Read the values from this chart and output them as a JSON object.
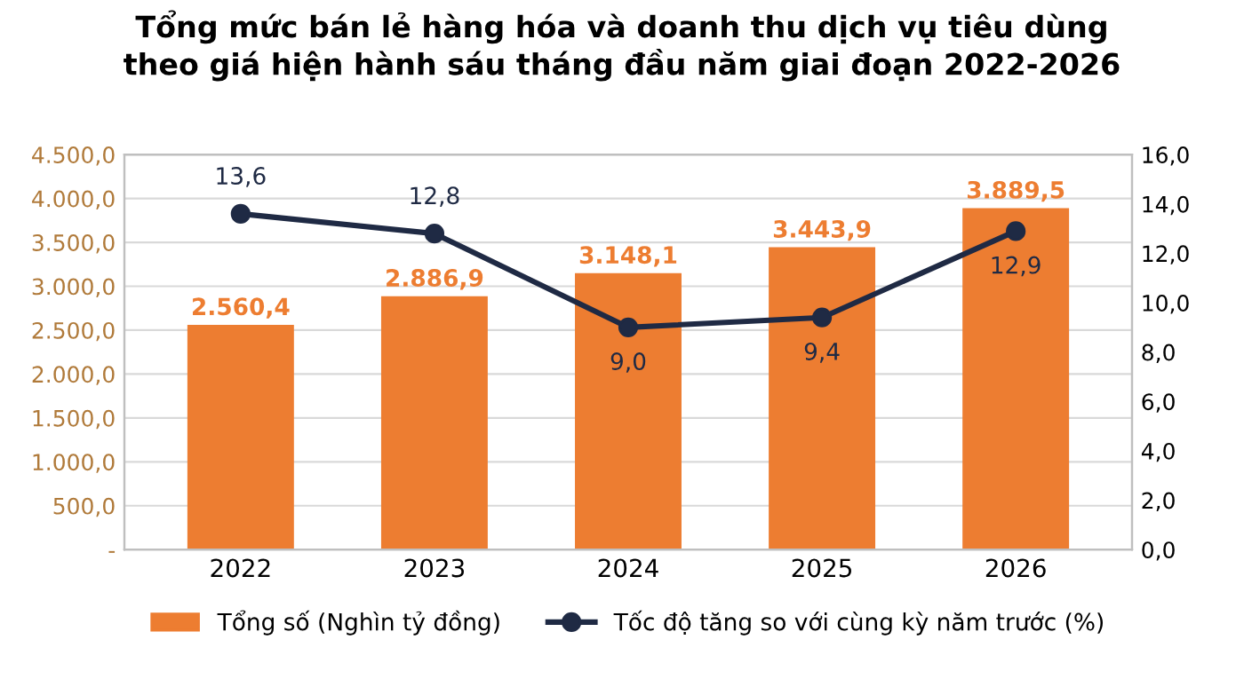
{
  "chart_data": {
    "type": "bar",
    "title": "Tổng mức bán lẻ hàng hóa và doanh thu dịch vụ tiêu dùng\ntheo giá hiện hành sáu tháng đầu năm giai đoạn 2022-2026",
    "categories": [
      "2022",
      "2023",
      "2024",
      "2025",
      "2026"
    ],
    "series": [
      {
        "name": "Tổng số (Nghìn tỷ đồng)",
        "color": "#ed7d31",
        "values": [
          2560.4,
          2886.9,
          3148.1,
          3443.9,
          3889.5
        ],
        "value_labels": [
          "2.560,4",
          "2.886,9",
          "3.148,1",
          "3.443,9",
          "3.889,5"
        ]
      },
      {
        "name": "Tốc độ tăng so với cùng kỳ năm trước (%)",
        "type": "line",
        "axis": "y2",
        "color": "#1f2a44",
        "marker": "circle",
        "values": [
          13.6,
          12.8,
          9.0,
          9.4,
          12.9
        ],
        "value_labels": [
          "13,6",
          "12,8",
          "9,0",
          "9,4",
          "12,9"
        ]
      }
    ],
    "ylim": [
      0,
      4500
    ],
    "yticks": [
      {
        "value": 0,
        "label": "-"
      },
      {
        "value": 500,
        "label": "500,0"
      },
      {
        "value": 1000,
        "label": "1.000,0"
      },
      {
        "value": 1500,
        "label": "1.500,0"
      },
      {
        "value": 2000,
        "label": "2.000,0"
      },
      {
        "value": 2500,
        "label": "2.500,0"
      },
      {
        "value": 3000,
        "label": "3.000,0"
      },
      {
        "value": 3500,
        "label": "3.500,0"
      },
      {
        "value": 4000,
        "label": "4.000,0"
      },
      {
        "value": 4500,
        "label": "4.500,0"
      }
    ],
    "y2lim": [
      0,
      16
    ],
    "y2ticks": [
      {
        "value": 0,
        "label": "0,0"
      },
      {
        "value": 2,
        "label": "2,0"
      },
      {
        "value": 4,
        "label": "4,0"
      },
      {
        "value": 6,
        "label": "6,0"
      },
      {
        "value": 8,
        "label": "8,0"
      },
      {
        "value": 10,
        "label": "10,0"
      },
      {
        "value": 12,
        "label": "12,0"
      },
      {
        "value": 14,
        "label": "14,0"
      },
      {
        "value": 16,
        "label": "16,0"
      }
    ],
    "grid": "y",
    "legend": "bottom"
  }
}
